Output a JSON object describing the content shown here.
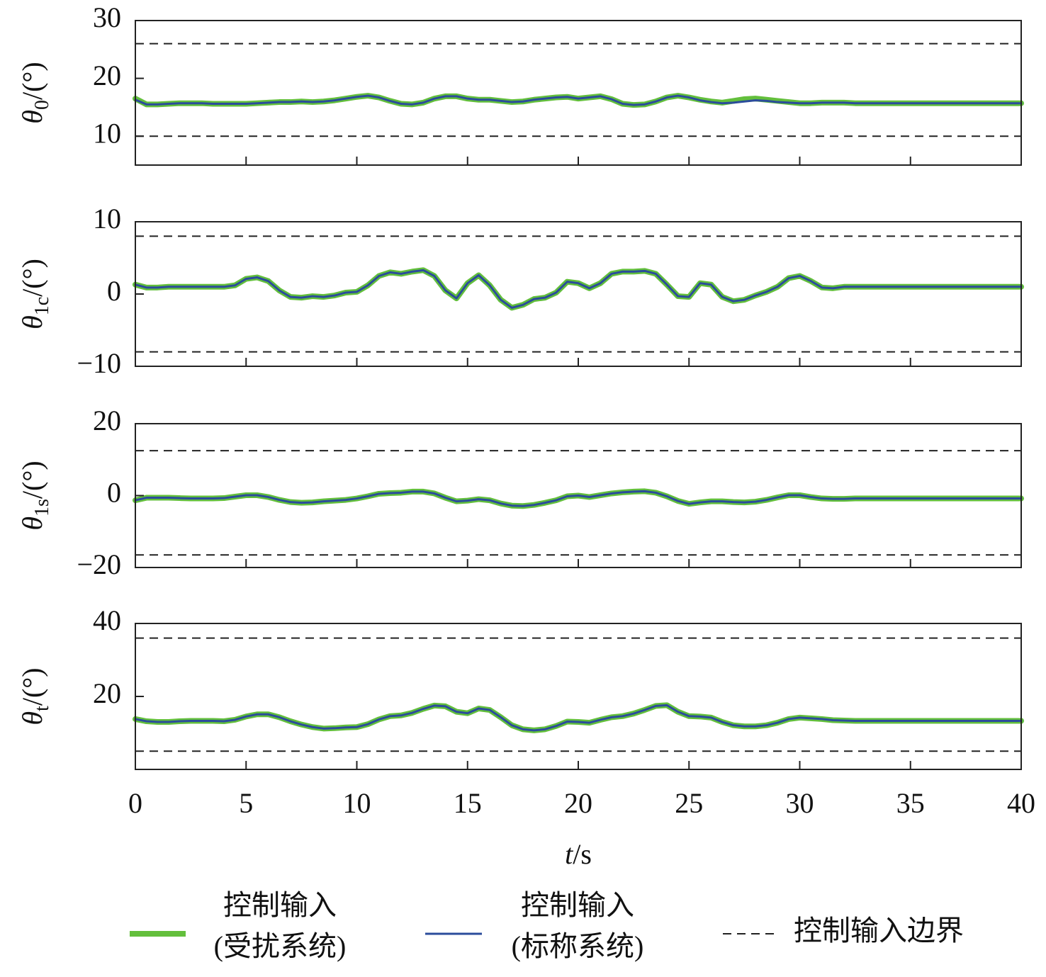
{
  "chart_data": [
    {
      "type": "line",
      "ylabel": {
        "symbol": "θ",
        "subscript": "0",
        "unit": "/(°)"
      },
      "xlim": [
        0,
        40
      ],
      "xticks": [
        0,
        5,
        10,
        15,
        20,
        25,
        30,
        35,
        40
      ],
      "ylim": [
        5,
        30
      ],
      "yticks": [
        10,
        20,
        30
      ],
      "x": [
        0,
        0.5,
        1,
        1.5,
        2,
        2.5,
        3,
        3.5,
        4,
        4.5,
        5,
        5.5,
        6,
        6.5,
        7,
        7.5,
        8,
        8.5,
        9,
        9.5,
        10,
        10.5,
        11,
        11.5,
        12,
        12.5,
        13,
        13.5,
        14,
        14.5,
        15,
        15.5,
        16,
        16.5,
        17,
        17.5,
        18,
        18.5,
        19,
        19.5,
        20,
        20.5,
        21,
        21.5,
        22,
        22.5,
        23,
        23.5,
        24,
        24.5,
        25,
        25.5,
        26,
        26.5,
        27,
        27.5,
        28,
        28.5,
        29,
        29.5,
        30,
        30.5,
        31,
        31.5,
        32,
        32.5,
        33,
        33.5,
        34,
        34.5,
        35,
        35.5,
        36,
        36.5,
        37,
        37.5,
        38,
        38.5,
        39,
        39.5,
        40
      ],
      "series": [
        {
          "color": "#63bf3c",
          "values": [
            16.5,
            15.5,
            15.5,
            15.6,
            15.7,
            15.7,
            15.7,
            15.6,
            15.6,
            15.6,
            15.6,
            15.7,
            15.8,
            15.9,
            15.9,
            16,
            15.9,
            16,
            16.2,
            16.5,
            16.8,
            17,
            16.7,
            16.1,
            15.6,
            15.5,
            15.8,
            16.5,
            16.9,
            16.9,
            16.5,
            16.3,
            16.3,
            16.1,
            15.9,
            16,
            16.3,
            16.5,
            16.7,
            16.8,
            16.5,
            16.7,
            16.9,
            16.4,
            15.6,
            15.4,
            15.5,
            16,
            16.7,
            17,
            16.7,
            16.3,
            16,
            15.8,
            16.1,
            16.4,
            16.5,
            16.3,
            16.1,
            15.9,
            15.7,
            15.7,
            15.8,
            15.8,
            15.8,
            15.7,
            15.7,
            15.7,
            15.7,
            15.7,
            15.7,
            15.7,
            15.7,
            15.7,
            15.7,
            15.7,
            15.7,
            15.7,
            15.7,
            15.7,
            15.7
          ]
        },
        {
          "color": "#2b4c9b",
          "values": [
            16.3,
            15.5,
            15.5,
            15.6,
            15.7,
            15.7,
            15.7,
            15.6,
            15.6,
            15.6,
            15.6,
            15.7,
            15.8,
            15.9,
            15.9,
            16,
            15.9,
            16,
            16.2,
            16.5,
            16.8,
            17,
            16.7,
            16.1,
            15.6,
            15.5,
            15.8,
            16.5,
            16.9,
            16.9,
            16.5,
            16.3,
            16.3,
            16.1,
            15.9,
            16,
            16.3,
            16.5,
            16.7,
            16.8,
            16.5,
            16.7,
            16.9,
            16.4,
            15.6,
            15.4,
            15.5,
            16,
            16.7,
            17,
            16.7,
            16.2,
            15.9,
            15.7,
            15.8,
            16,
            16.2,
            16.1,
            15.9,
            15.8,
            15.7,
            15.7,
            15.8,
            15.8,
            15.8,
            15.7,
            15.7,
            15.7,
            15.7,
            15.7,
            15.7,
            15.7,
            15.7,
            15.7,
            15.7,
            15.7,
            15.7,
            15.7,
            15.7,
            15.7,
            15.7
          ]
        }
      ],
      "bounds": {
        "values": [
          26,
          10
        ]
      }
    },
    {
      "type": "line",
      "ylabel": {
        "symbol": "θ",
        "subscript": "1c",
        "unit": "/(°)"
      },
      "xlim": [
        0,
        40
      ],
      "xticks": [
        0,
        5,
        10,
        15,
        20,
        25,
        30,
        35,
        40
      ],
      "ylim": [
        -10,
        10
      ],
      "yticks": [
        {
          "value": -10,
          "label": "−10"
        },
        0,
        10
      ],
      "x": [
        0,
        0.5,
        1,
        1.5,
        2,
        2.5,
        3,
        3.5,
        4,
        4.5,
        5,
        5.5,
        6,
        6.5,
        7,
        7.5,
        8,
        8.5,
        9,
        9.5,
        10,
        10.5,
        11,
        11.5,
        12,
        12.5,
        13,
        13.5,
        14,
        14.5,
        15,
        15.5,
        16,
        16.5,
        17,
        17.5,
        18,
        18.5,
        19,
        19.5,
        20,
        20.5,
        21,
        21.5,
        22,
        22.5,
        23,
        23.5,
        24,
        24.5,
        25,
        25.5,
        26,
        26.5,
        27,
        27.5,
        28,
        28.5,
        29,
        29.5,
        30,
        30.5,
        31,
        31.5,
        32,
        32.5,
        33,
        33.5,
        34,
        34.5,
        35,
        35.5,
        36,
        36.5,
        37,
        37.5,
        38,
        38.5,
        39,
        39.5,
        40
      ],
      "series": [
        {
          "color": "#63bf3c",
          "values": [
            1.3,
            0.9,
            0.9,
            1,
            1,
            1,
            1,
            1,
            1,
            1.2,
            2.1,
            2.3,
            1.8,
            0.5,
            -0.4,
            -0.5,
            -0.3,
            -0.4,
            -0.2,
            0.2,
            0.3,
            1.2,
            2.5,
            3,
            2.8,
            3.1,
            3.3,
            2.5,
            0.5,
            -0.6,
            1.5,
            2.6,
            1.2,
            -0.8,
            -1.9,
            -1.5,
            -0.7,
            -0.5,
            0.2,
            1.7,
            1.5,
            0.8,
            1.5,
            2.8,
            3.1,
            3.1,
            3.2,
            2.8,
            1.3,
            -0.3,
            -0.4,
            1.5,
            1.3,
            -0.4,
            -1,
            -0.8,
            -0.2,
            0.3,
            1,
            2.2,
            2.5,
            1.8,
            0.9,
            0.8,
            1,
            1,
            1,
            1,
            1,
            1,
            1,
            1,
            1,
            1,
            1,
            1,
            1,
            1,
            1,
            1,
            1
          ]
        },
        {
          "color": "#2b4c9b",
          "values": [
            1.3,
            0.9,
            0.9,
            1,
            1,
            1,
            1,
            1,
            1,
            1.2,
            2.1,
            2.3,
            1.8,
            0.5,
            -0.4,
            -0.5,
            -0.3,
            -0.4,
            -0.2,
            0.2,
            0.3,
            1.2,
            2.5,
            3,
            2.8,
            3.1,
            3.3,
            2.5,
            0.5,
            -0.6,
            1.5,
            2.6,
            1.2,
            -0.8,
            -1.9,
            -1.5,
            -0.7,
            -0.5,
            0.2,
            1.7,
            1.5,
            0.8,
            1.5,
            2.8,
            3.1,
            3.1,
            3.2,
            2.8,
            1.3,
            -0.3,
            -0.4,
            1.5,
            1.3,
            -0.4,
            -1,
            -0.8,
            -0.2,
            0.3,
            1,
            2.2,
            2.5,
            1.8,
            0.9,
            0.8,
            1,
            1,
            1,
            1,
            1,
            1,
            1,
            1,
            1,
            1,
            1,
            1,
            1,
            1,
            1,
            1,
            1
          ]
        }
      ],
      "bounds": {
        "values": [
          8,
          -8
        ]
      }
    },
    {
      "type": "line",
      "ylabel": {
        "symbol": "θ",
        "subscript": "1s",
        "unit": "/(°)"
      },
      "xlim": [
        0,
        40
      ],
      "xticks": [
        0,
        5,
        10,
        15,
        20,
        25,
        30,
        35,
        40
      ],
      "ylim": [
        -20,
        20
      ],
      "yticks": [
        {
          "value": -20,
          "label": "−20"
        },
        0,
        20
      ],
      "x": [
        0,
        0.5,
        1,
        1.5,
        2,
        2.5,
        3,
        3.5,
        4,
        4.5,
        5,
        5.5,
        6,
        6.5,
        7,
        7.5,
        8,
        8.5,
        9,
        9.5,
        10,
        10.5,
        11,
        11.5,
        12,
        12.5,
        13,
        13.5,
        14,
        14.5,
        15,
        15.5,
        16,
        16.5,
        17,
        17.5,
        18,
        18.5,
        19,
        19.5,
        20,
        20.5,
        21,
        21.5,
        22,
        22.5,
        23,
        23.5,
        24,
        24.5,
        25,
        25.5,
        26,
        26.5,
        27,
        27.5,
        28,
        28.5,
        29,
        29.5,
        30,
        30.5,
        31,
        31.5,
        32,
        32.5,
        33,
        33.5,
        34,
        34.5,
        35,
        35.5,
        36,
        36.5,
        37,
        37.5,
        38,
        38.5,
        39,
        39.5,
        40
      ],
      "series": [
        {
          "color": "#63bf3c",
          "values": [
            -1.3,
            -0.6,
            -0.6,
            -0.6,
            -0.7,
            -0.8,
            -0.8,
            -0.8,
            -0.7,
            -0.3,
            0.1,
            0.1,
            -0.4,
            -1.2,
            -1.8,
            -2,
            -1.9,
            -1.6,
            -1.4,
            -1.2,
            -0.8,
            -0.2,
            0.5,
            0.7,
            0.8,
            1.1,
            1.1,
            0.6,
            -0.6,
            -1.6,
            -1.4,
            -1,
            -1.3,
            -2.2,
            -2.8,
            -2.9,
            -2.6,
            -2,
            -1.3,
            -0.2,
            0,
            -0.4,
            0.1,
            0.6,
            0.9,
            1.1,
            1.2,
            0.8,
            -0.2,
            -1.5,
            -2.3,
            -1.9,
            -1.6,
            -1.6,
            -1.8,
            -1.9,
            -1.7,
            -1.2,
            -0.5,
            0.1,
            0.1,
            -0.4,
            -0.8,
            -0.9,
            -0.9,
            -0.8,
            -0.8,
            -0.8,
            -0.8,
            -0.8,
            -0.8,
            -0.8,
            -0.8,
            -0.8,
            -0.8,
            -0.8,
            -0.8,
            -0.8,
            -0.8,
            -0.8,
            -0.8
          ]
        },
        {
          "color": "#2b4c9b",
          "values": [
            -1.3,
            -0.6,
            -0.6,
            -0.6,
            -0.7,
            -0.8,
            -0.8,
            -0.8,
            -0.7,
            -0.3,
            0.1,
            0.1,
            -0.4,
            -1.2,
            -1.8,
            -2,
            -1.9,
            -1.6,
            -1.4,
            -1.2,
            -0.8,
            -0.2,
            0.5,
            0.7,
            0.8,
            1.1,
            1.1,
            0.6,
            -0.6,
            -1.6,
            -1.4,
            -1,
            -1.3,
            -2.2,
            -2.8,
            -2.9,
            -2.6,
            -2,
            -1.3,
            -0.2,
            0,
            -0.4,
            0.1,
            0.6,
            0.9,
            1.1,
            1.2,
            0.8,
            -0.2,
            -1.5,
            -2.3,
            -1.9,
            -1.6,
            -1.6,
            -1.8,
            -1.9,
            -1.7,
            -1.2,
            -0.5,
            0.1,
            0.1,
            -0.4,
            -0.8,
            -0.9,
            -0.9,
            -0.8,
            -0.8,
            -0.8,
            -0.8,
            -0.8,
            -0.8,
            -0.8,
            -0.8,
            -0.8,
            -0.8,
            -0.8,
            -0.8,
            -0.8,
            -0.8,
            -0.8,
            -0.8
          ]
        }
      ],
      "bounds": {
        "values": [
          12.5,
          -16.5
        ]
      }
    },
    {
      "type": "line",
      "ylabel": {
        "symbol": "θ",
        "subscript": "t",
        "unit": "/(°)"
      },
      "xlabel": {
        "symbol": "t",
        "unit": "/s"
      },
      "xlim": [
        0,
        40
      ],
      "xticks": [
        0,
        5,
        10,
        15,
        20,
        25,
        30,
        35,
        40
      ],
      "xtick_labels": true,
      "ylim": [
        0,
        40
      ],
      "yticks": [
        20,
        40
      ],
      "x": [
        0,
        0.5,
        1,
        1.5,
        2,
        2.5,
        3,
        3.5,
        4,
        4.5,
        5,
        5.5,
        6,
        6.5,
        7,
        7.5,
        8,
        8.5,
        9,
        9.5,
        10,
        10.5,
        11,
        11.5,
        12,
        12.5,
        13,
        13.5,
        14,
        14.5,
        15,
        15.5,
        16,
        16.5,
        17,
        17.5,
        18,
        18.5,
        19,
        19.5,
        20,
        20.5,
        21,
        21.5,
        22,
        22.5,
        23,
        23.5,
        24,
        24.5,
        25,
        25.5,
        26,
        26.5,
        27,
        27.5,
        28,
        28.5,
        29,
        29.5,
        30,
        30.5,
        31,
        31.5,
        32,
        32.5,
        33,
        33.5,
        34,
        34.5,
        35,
        35.5,
        36,
        36.5,
        37,
        37.5,
        38,
        38.5,
        39,
        39.5,
        40
      ],
      "series": [
        {
          "name": [
            "控制输入",
            "(受扰系统)"
          ],
          "color": "#63bf3c",
          "values": [
            13.8,
            13.2,
            13,
            13,
            13.2,
            13.3,
            13.3,
            13.3,
            13.2,
            13.6,
            14.5,
            15.1,
            15.1,
            14.3,
            13.2,
            12.3,
            11.6,
            11.2,
            11.3,
            11.5,
            11.6,
            12.4,
            13.7,
            14.6,
            14.8,
            15.5,
            16.6,
            17.5,
            17.3,
            15.8,
            15.4,
            16.7,
            16.3,
            14.3,
            12.1,
            11,
            10.7,
            11,
            11.9,
            13.1,
            13,
            12.8,
            13.6,
            14.3,
            14.6,
            15.3,
            16.3,
            17.4,
            17.6,
            15.8,
            14.6,
            14.5,
            14.2,
            13,
            12.1,
            11.8,
            11.8,
            12.1,
            12.8,
            13.8,
            14.2,
            14,
            13.8,
            13.5,
            13.4,
            13.3,
            13.3,
            13.3,
            13.3,
            13.3,
            13.3,
            13.3,
            13.3,
            13.3,
            13.3,
            13.3,
            13.3,
            13.3,
            13.3,
            13.3,
            13.3
          ]
        },
        {
          "name": [
            "控制输入",
            "(标称系统)"
          ],
          "color": "#2b4c9b",
          "values": [
            13.8,
            13.2,
            13,
            13,
            13.2,
            13.3,
            13.3,
            13.3,
            13.2,
            13.6,
            14.5,
            15.1,
            15.1,
            14.3,
            13.2,
            12.3,
            11.6,
            11.2,
            11.3,
            11.5,
            11.6,
            12.4,
            13.7,
            14.6,
            14.8,
            15.5,
            16.6,
            17.5,
            17.3,
            15.8,
            15.4,
            16.7,
            16.3,
            14.3,
            12.1,
            11,
            10.7,
            11,
            11.9,
            13.1,
            13,
            12.8,
            13.6,
            14.3,
            14.6,
            15.3,
            16.3,
            17.4,
            17.6,
            15.8,
            14.6,
            14.5,
            14.2,
            13,
            12.1,
            11.8,
            11.8,
            12.1,
            12.8,
            13.8,
            14.2,
            14,
            13.8,
            13.5,
            13.4,
            13.3,
            13.3,
            13.3,
            13.3,
            13.3,
            13.3,
            13.3,
            13.3,
            13.3,
            13.3,
            13.3,
            13.3,
            13.3,
            13.3,
            13.3,
            13.3
          ]
        }
      ],
      "bounds": {
        "name": "控制输入边界",
        "values": [
          36,
          5
        ]
      }
    }
  ]
}
